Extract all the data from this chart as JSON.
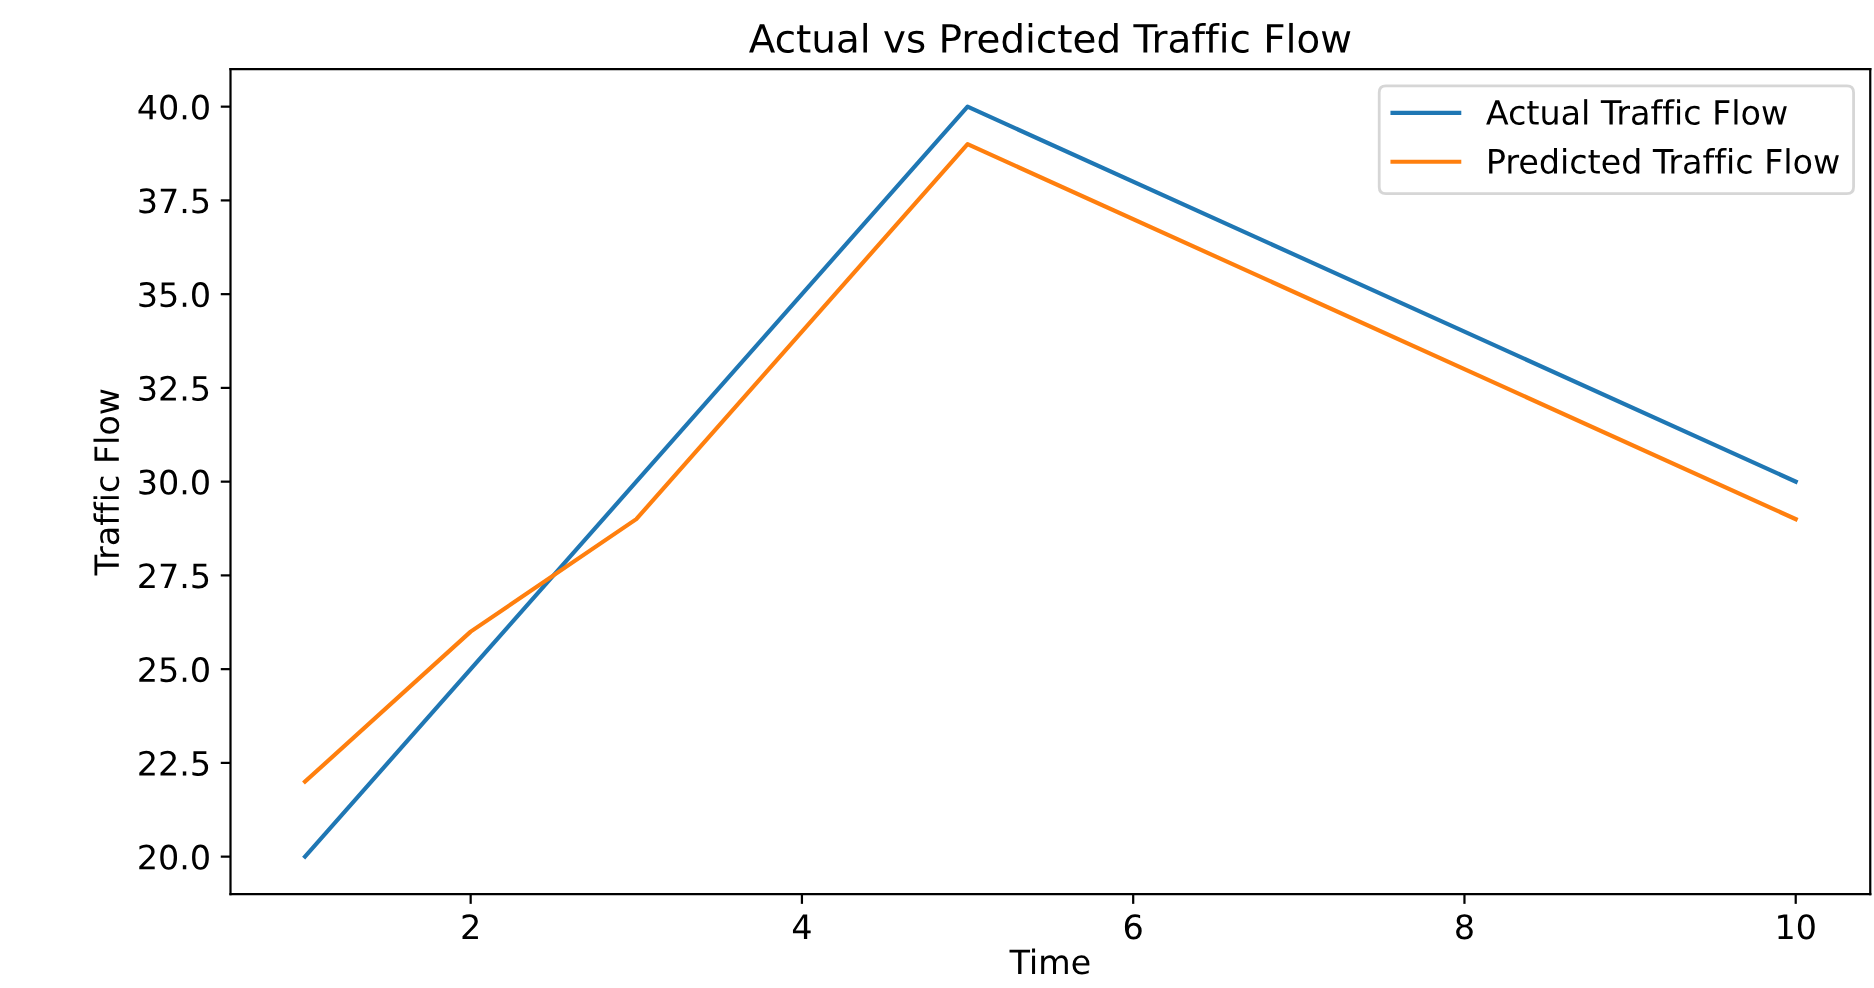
{
  "chart_data": {
    "type": "line",
    "title": "Actual vs Predicted Traffic Flow",
    "xlabel": "Time",
    "ylabel": "Traffic Flow",
    "x": [
      1,
      2,
      3,
      5,
      10
    ],
    "series": [
      {
        "name": "Actual Traffic Flow",
        "color": "#1f77b4",
        "values": [
          20,
          25,
          30,
          40,
          30
        ]
      },
      {
        "name": "Predicted Traffic Flow",
        "color": "#ff7f0e",
        "values": [
          22,
          26,
          29,
          39,
          29
        ]
      }
    ],
    "xlim": [
      0.55,
      10.45
    ],
    "xticks": [
      2,
      4,
      6,
      8,
      10
    ],
    "ylim": [
      19,
      41
    ],
    "yticks": [
      {
        "value": 20,
        "label": "20.0"
      },
      {
        "value": 22.5,
        "label": "22.5"
      },
      {
        "value": 25,
        "label": "25.0"
      },
      {
        "value": 27.5,
        "label": "27.5"
      },
      {
        "value": 30,
        "label": "30.0"
      },
      {
        "value": 32.5,
        "label": "32.5"
      },
      {
        "value": 35,
        "label": "35.0"
      },
      {
        "value": 37.5,
        "label": "37.5"
      },
      {
        "value": 40,
        "label": "40.0"
      }
    ],
    "legend": "top right",
    "grid": false,
    "marker": "none",
    "line_style": "solid"
  }
}
